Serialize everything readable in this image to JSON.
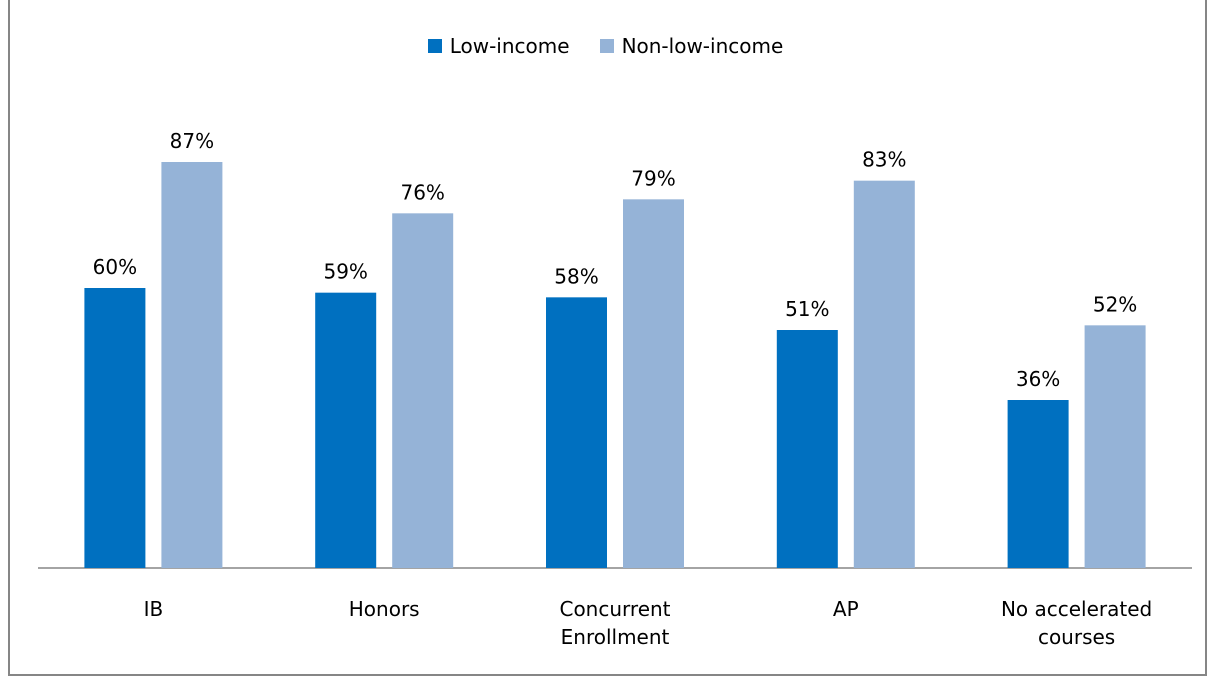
{
  "chart_data": {
    "type": "bar",
    "categories": [
      [
        "IB"
      ],
      [
        "Honors"
      ],
      [
        "Concurrent",
        "Enrollment"
      ],
      [
        "AP"
      ],
      [
        "No accelerated",
        "courses"
      ]
    ],
    "series": [
      {
        "name": "Low-income",
        "values": [
          60,
          59,
          58,
          51,
          36
        ],
        "labels": [
          "60%",
          "59%",
          "58%",
          "51%",
          "36%"
        ],
        "color": "#0070c0"
      },
      {
        "name": "Non-low-income",
        "values": [
          87,
          76,
          79,
          83,
          52
        ],
        "labels": [
          "87%",
          "76%",
          "79%",
          "83%",
          "52%"
        ],
        "color": "#95b3d7"
      }
    ],
    "title": "",
    "xlabel": "",
    "ylabel": "",
    "ylim": [
      0,
      100
    ],
    "grid": false,
    "legend": "top-center"
  }
}
